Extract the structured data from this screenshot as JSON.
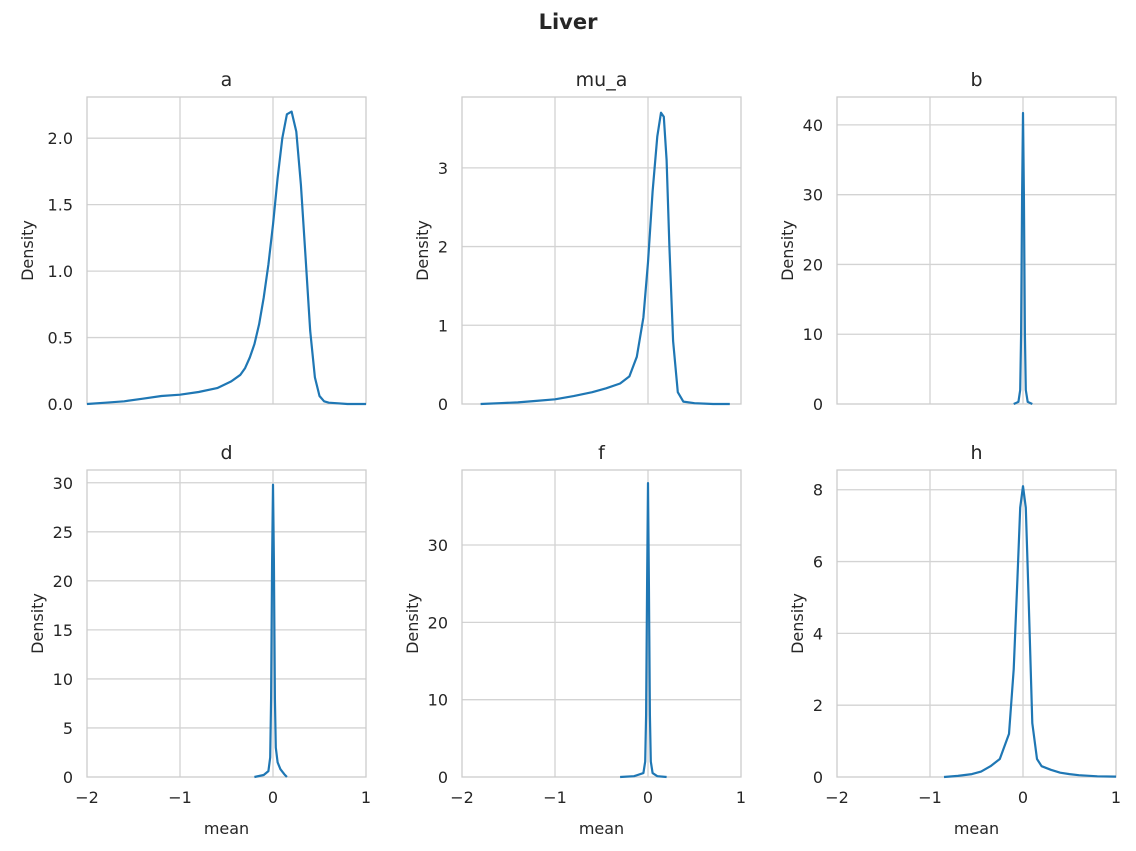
{
  "figure_title": "Liver",
  "chart_data": [
    {
      "type": "line",
      "title": "a",
      "xlabel": "",
      "ylabel": "Density",
      "xlim": [
        -2,
        1
      ],
      "ylim": [
        0,
        2.31
      ],
      "xticks": [
        -2,
        -1,
        0,
        1
      ],
      "xtick_labels": [],
      "yticks": [
        0.0,
        0.5,
        1.0,
        1.5,
        2.0
      ],
      "ytick_labels": [
        "0.0",
        "0.5",
        "1.0",
        "1.5",
        "2.0"
      ],
      "grid": true,
      "series": [
        {
          "x": [
            -2.0,
            -1.8,
            -1.6,
            -1.4,
            -1.2,
            -1.0,
            -0.8,
            -0.6,
            -0.45,
            -0.35,
            -0.3,
            -0.25,
            -0.2,
            -0.15,
            -0.1,
            -0.05,
            0.0,
            0.05,
            0.1,
            0.15,
            0.2,
            0.25,
            0.3,
            0.35,
            0.4,
            0.45,
            0.5,
            0.55,
            0.6,
            0.7,
            0.8,
            1.0
          ],
          "y": [
            0.0,
            0.01,
            0.02,
            0.04,
            0.06,
            0.07,
            0.09,
            0.12,
            0.17,
            0.22,
            0.27,
            0.35,
            0.45,
            0.6,
            0.8,
            1.05,
            1.35,
            1.7,
            2.0,
            2.18,
            2.2,
            2.05,
            1.65,
            1.1,
            0.55,
            0.2,
            0.06,
            0.02,
            0.01,
            0.005,
            0.0,
            0.0
          ]
        }
      ]
    },
    {
      "type": "line",
      "title": "mu_a",
      "xlabel": "",
      "ylabel": "Density",
      "xlim": [
        -2,
        1
      ],
      "ylim": [
        0,
        3.9
      ],
      "xticks": [
        -2,
        -1,
        0,
        1
      ],
      "xtick_labels": [],
      "yticks": [
        0,
        1,
        2,
        3
      ],
      "ytick_labels": [
        "0",
        "1",
        "2",
        "3"
      ],
      "grid": true,
      "series": [
        {
          "x": [
            -1.8,
            -1.6,
            -1.4,
            -1.2,
            -1.0,
            -0.8,
            -0.6,
            -0.45,
            -0.3,
            -0.2,
            -0.12,
            -0.05,
            0.0,
            0.05,
            0.1,
            0.14,
            0.17,
            0.2,
            0.23,
            0.27,
            0.32,
            0.38,
            0.5,
            0.7,
            0.88
          ],
          "y": [
            0.0,
            0.01,
            0.02,
            0.04,
            0.06,
            0.1,
            0.15,
            0.2,
            0.26,
            0.35,
            0.6,
            1.1,
            1.8,
            2.7,
            3.4,
            3.7,
            3.65,
            3.1,
            2.0,
            0.8,
            0.15,
            0.03,
            0.01,
            0.0,
            0.0
          ]
        }
      ]
    },
    {
      "type": "line",
      "title": "b",
      "xlabel": "",
      "ylabel": "Density",
      "xlim": [
        -2,
        1
      ],
      "ylim": [
        0,
        44
      ],
      "xticks": [
        -2,
        -1,
        0,
        1
      ],
      "xtick_labels": [],
      "yticks": [
        0,
        10,
        20,
        30,
        40
      ],
      "ytick_labels": [
        "0",
        "10",
        "20",
        "30",
        "40"
      ],
      "grid": true,
      "series": [
        {
          "x": [
            -0.1,
            -0.05,
            -0.03,
            -0.02,
            -0.01,
            0.0,
            0.01,
            0.02,
            0.03,
            0.05,
            0.1
          ],
          "y": [
            0.0,
            0.3,
            2.0,
            10.0,
            30.0,
            41.7,
            30.0,
            10.0,
            2.0,
            0.3,
            0.0
          ]
        }
      ]
    },
    {
      "type": "line",
      "title": "d",
      "xlabel": "mean",
      "ylabel": "Density",
      "xlim": [
        -2,
        1
      ],
      "ylim": [
        0,
        31.3
      ],
      "xticks": [
        -2,
        -1,
        0,
        1
      ],
      "xtick_labels": [
        "−2",
        "−1",
        "0",
        "1"
      ],
      "yticks": [
        0,
        5,
        10,
        15,
        20,
        25,
        30
      ],
      "ytick_labels": [
        "0",
        "5",
        "10",
        "15",
        "20",
        "25",
        "30"
      ],
      "grid": true,
      "series": [
        {
          "x": [
            -0.2,
            -0.1,
            -0.05,
            -0.03,
            -0.02,
            -0.01,
            0.0,
            0.01,
            0.02,
            0.03,
            0.05,
            0.08,
            0.12,
            0.15
          ],
          "y": [
            0.0,
            0.2,
            0.6,
            2.0,
            8.0,
            22.0,
            29.8,
            22.0,
            8.0,
            3.0,
            1.5,
            0.8,
            0.3,
            0.0
          ]
        }
      ]
    },
    {
      "type": "line",
      "title": "f",
      "xlabel": "mean",
      "ylabel": "Density",
      "xlim": [
        -2,
        1
      ],
      "ylim": [
        0,
        39.7
      ],
      "xticks": [
        -2,
        -1,
        0,
        1
      ],
      "xtick_labels": [
        "−2",
        "−1",
        "0",
        "1"
      ],
      "yticks": [
        0,
        10,
        20,
        30
      ],
      "ytick_labels": [
        "0",
        "10",
        "20",
        "30"
      ],
      "grid": true,
      "series": [
        {
          "x": [
            -0.3,
            -0.15,
            -0.05,
            -0.03,
            -0.02,
            -0.01,
            0.0,
            0.01,
            0.02,
            0.03,
            0.05,
            0.1,
            0.2
          ],
          "y": [
            0.0,
            0.1,
            0.5,
            2.0,
            8.0,
            25.0,
            38.0,
            25.0,
            8.0,
            2.0,
            0.5,
            0.1,
            0.0
          ]
        }
      ]
    },
    {
      "type": "line",
      "title": "h",
      "xlabel": "mean",
      "ylabel": "Density",
      "xlim": [
        -2,
        1
      ],
      "ylim": [
        0,
        8.55
      ],
      "xticks": [
        -2,
        -1,
        0,
        1
      ],
      "xtick_labels": [
        "−2",
        "−1",
        "0",
        "1"
      ],
      "yticks": [
        0,
        2,
        4,
        6,
        8
      ],
      "ytick_labels": [
        "0",
        "2",
        "4",
        "6",
        "8"
      ],
      "grid": true,
      "series": [
        {
          "x": [
            -0.85,
            -0.7,
            -0.55,
            -0.45,
            -0.35,
            -0.25,
            -0.15,
            -0.1,
            -0.06,
            -0.03,
            0.0,
            0.03,
            0.06,
            0.1,
            0.15,
            0.2,
            0.3,
            0.4,
            0.5,
            0.6,
            0.8,
            1.0
          ],
          "y": [
            0.0,
            0.03,
            0.08,
            0.15,
            0.3,
            0.5,
            1.2,
            3.0,
            5.5,
            7.5,
            8.1,
            7.5,
            5.0,
            1.5,
            0.5,
            0.3,
            0.2,
            0.12,
            0.08,
            0.05,
            0.02,
            0.01
          ]
        }
      ]
    }
  ]
}
